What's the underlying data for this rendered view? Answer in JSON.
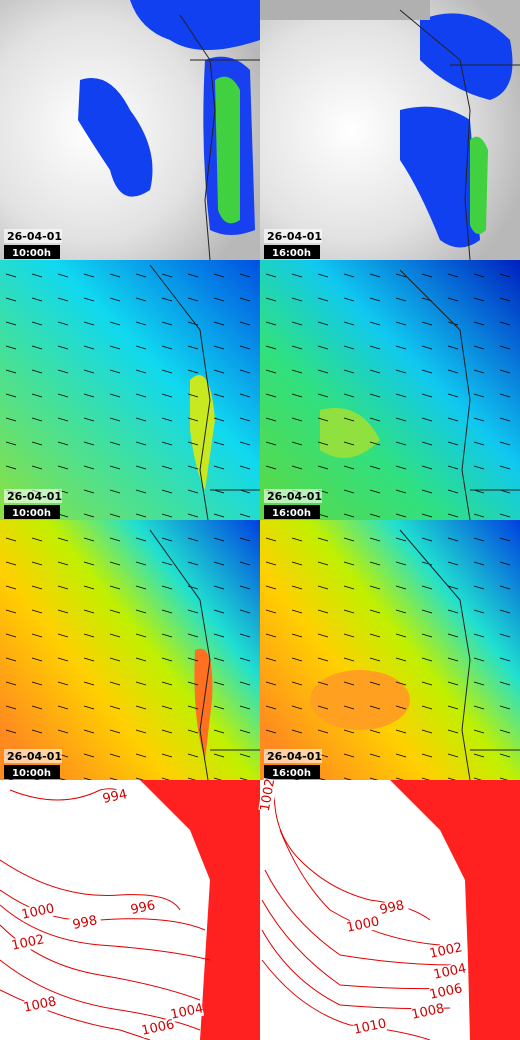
{
  "panels": [
    {
      "date": "26-04-01",
      "time": "10:00h"
    },
    {
      "date": "26-04-01",
      "time": "16:00h"
    },
    {
      "date": "26-04-01",
      "time": "10:00h"
    },
    {
      "date": "26-04-01",
      "time": "16:00h"
    },
    {
      "date": "26-04-01",
      "time": "10:00h"
    },
    {
      "date": "26-04-01",
      "time": "16:00h"
    },
    {
      "contour_labels": [
        "994",
        "996",
        "998",
        "1000",
        "1002",
        "1008",
        "1004",
        "1006"
      ]
    },
    {
      "contour_labels": [
        "1002",
        "998",
        "1000",
        "1002",
        "1004",
        "1006",
        "1008",
        "1010"
      ]
    }
  ]
}
